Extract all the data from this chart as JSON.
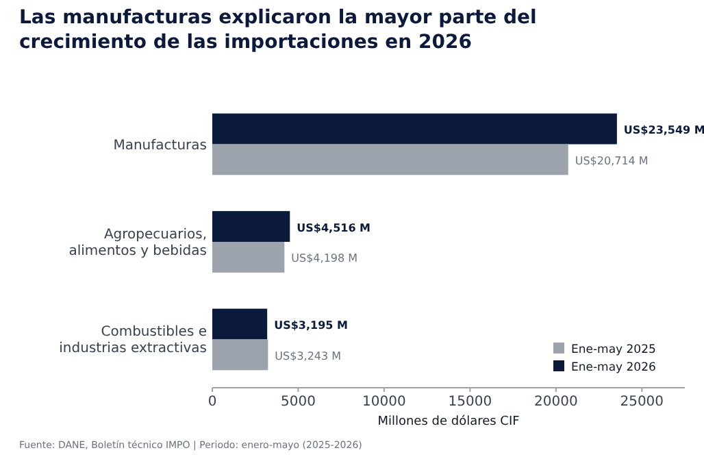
{
  "chart_data": {
    "type": "bar",
    "orientation": "horizontal",
    "title": "Las manufacturas explicaron la mayor parte del crecimiento de las importaciones en 2026",
    "xlabel": "Millones de dólares CIF",
    "categories": [
      "Manufacturas",
      "Agropecuarios, alimentos y bebidas",
      "Combustibles e industrias extractivas"
    ],
    "series": [
      {
        "name": "Ene-may 2026",
        "color": "#0b1a3b",
        "values": [
          23549,
          4516,
          3195
        ],
        "value_labels": [
          "US$23,549 M",
          "US$4,516 M",
          "US$3,195 M"
        ]
      },
      {
        "name": "Ene-may 2025",
        "color": "#9ca3ad",
        "values": [
          20714,
          4198,
          3243
        ],
        "value_labels": [
          "US$20,714 M",
          "US$4,198 M",
          "US$3,243 M"
        ]
      }
    ],
    "xlim": [
      0,
      27500
    ],
    "xticks": [
      0,
      5000,
      10000,
      15000,
      20000,
      25000
    ],
    "grid": false,
    "legend": "bottom right",
    "annotations": [
      "Fuente: DANE, Boletín técnico IMPO  |  Periodo: enero-mayo (2025-2026)"
    ]
  }
}
